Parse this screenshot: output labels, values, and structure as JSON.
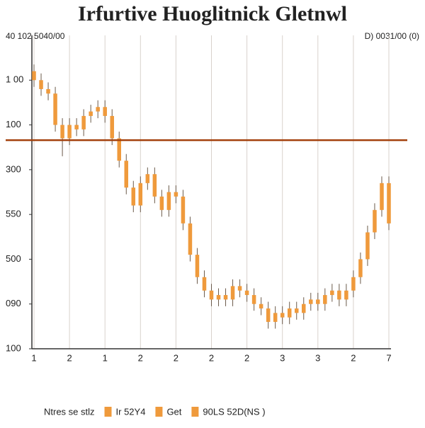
{
  "chart_data": {
    "type": "candlestick",
    "title": "Irfurtive Huoglitnick Gletnwl",
    "left_label": "40 102 5040/00",
    "right_label": "D) 0031/00 (0)",
    "x": [
      0,
      1,
      2,
      3,
      4,
      5,
      6,
      7,
      8,
      9,
      10,
      11,
      12,
      13,
      14,
      15,
      16,
      17,
      18,
      19,
      20,
      21,
      22,
      23,
      24,
      25,
      26,
      27,
      28,
      29,
      30,
      31,
      32,
      33,
      34,
      35,
      36,
      37,
      38,
      39,
      40,
      41,
      42,
      43,
      44,
      45,
      46,
      47,
      48,
      49,
      50
    ],
    "open": [
      6.2,
      6.0,
      5.8,
      5.7,
      5.0,
      4.7,
      5.0,
      4.9,
      5.2,
      5.3,
      5.4,
      5.2,
      4.7,
      4.2,
      3.6,
      3.2,
      3.7,
      3.9,
      3.4,
      3.1,
      3.5,
      3.4,
      2.8,
      2.1,
      1.6,
      1.3,
      1.1,
      1.2,
      1.1,
      1.4,
      1.3,
      1.2,
      1.0,
      0.9,
      0.6,
      0.8,
      0.7,
      0.9,
      0.8,
      1.0,
      1.1,
      1.0,
      1.2,
      1.3,
      1.1,
      1.3,
      1.6,
      2.0,
      2.6,
      3.1,
      3.7
    ],
    "high": [
      6.35,
      6.15,
      5.95,
      5.85,
      5.15,
      5.15,
      5.15,
      5.35,
      5.45,
      5.55,
      5.55,
      5.35,
      4.85,
      4.35,
      3.75,
      3.85,
      4.05,
      4.05,
      3.55,
      3.65,
      3.65,
      3.55,
      2.95,
      2.25,
      1.75,
      1.45,
      1.35,
      1.35,
      1.55,
      1.55,
      1.45,
      1.35,
      1.15,
      1.05,
      0.95,
      0.95,
      1.05,
      1.05,
      1.15,
      1.25,
      1.25,
      1.35,
      1.45,
      1.45,
      1.45,
      1.75,
      2.15,
      2.75,
      3.25,
      3.85,
      3.85
    ],
    "low": [
      5.85,
      5.65,
      5.55,
      4.85,
      4.3,
      4.55,
      4.75,
      4.75,
      5.05,
      5.15,
      5.05,
      4.55,
      4.05,
      3.45,
      3.05,
      3.05,
      3.55,
      3.25,
      2.95,
      2.95,
      3.25,
      2.65,
      1.95,
      1.45,
      1.15,
      0.95,
      0.95,
      0.95,
      0.95,
      1.15,
      1.05,
      0.85,
      0.75,
      0.45,
      0.45,
      0.55,
      0.55,
      0.65,
      0.65,
      0.85,
      0.85,
      0.85,
      1.05,
      0.95,
      0.95,
      1.15,
      1.45,
      1.85,
      2.45,
      2.95,
      2.65
    ],
    "close": [
      6.0,
      5.8,
      5.7,
      5.0,
      4.7,
      5.0,
      4.9,
      5.2,
      5.3,
      5.4,
      5.2,
      4.7,
      4.2,
      3.6,
      3.2,
      3.7,
      3.9,
      3.4,
      3.1,
      3.5,
      3.4,
      2.8,
      2.1,
      1.6,
      1.3,
      1.1,
      1.2,
      1.1,
      1.4,
      1.3,
      1.2,
      1.0,
      0.9,
      0.6,
      0.8,
      0.7,
      0.9,
      0.8,
      1.0,
      1.1,
      1.0,
      1.2,
      1.3,
      1.1,
      1.3,
      1.6,
      2.0,
      2.6,
      3.1,
      3.7,
      2.8
    ],
    "color": "#ef9a3c",
    "wick_color": "#6b5a4a",
    "reference_line": 4.66,
    "reference_color": "#a3400c",
    "xlim": [
      -0.3,
      50.3
    ],
    "xticks": [
      {
        "value": 0,
        "label": "1"
      },
      {
        "value": 5,
        "label": "2"
      },
      {
        "value": 10,
        "label": "1"
      },
      {
        "value": 15,
        "label": "2"
      },
      {
        "value": 20,
        "label": "2"
      },
      {
        "value": 25,
        "label": "2"
      },
      {
        "value": 30,
        "label": "2"
      },
      {
        "value": 35,
        "label": "3"
      },
      {
        "value": 40,
        "label": "3"
      },
      {
        "value": 45,
        "label": "2"
      },
      {
        "value": 50,
        "label": "7"
      }
    ],
    "ylim": [
      0,
      7
    ],
    "yticks": [
      {
        "value": 0,
        "label": "100"
      },
      {
        "value": 1,
        "label": "090"
      },
      {
        "value": 2,
        "label": "500"
      },
      {
        "value": 3,
        "label": "550"
      },
      {
        "value": 4,
        "label": "300"
      },
      {
        "value": 5,
        "label": "100"
      },
      {
        "value": 6,
        "label": "1 00"
      }
    ],
    "grid": true,
    "legend": [
      {
        "name": "Ntres se stlz"
      },
      {
        "name": "Ir 52Y4",
        "color": "#ef9a3c"
      },
      {
        "name": "Get",
        "color": "#ef9a3c"
      },
      {
        "name": "90LS 52D(NS )",
        "color": "#ef9a3c"
      }
    ]
  }
}
